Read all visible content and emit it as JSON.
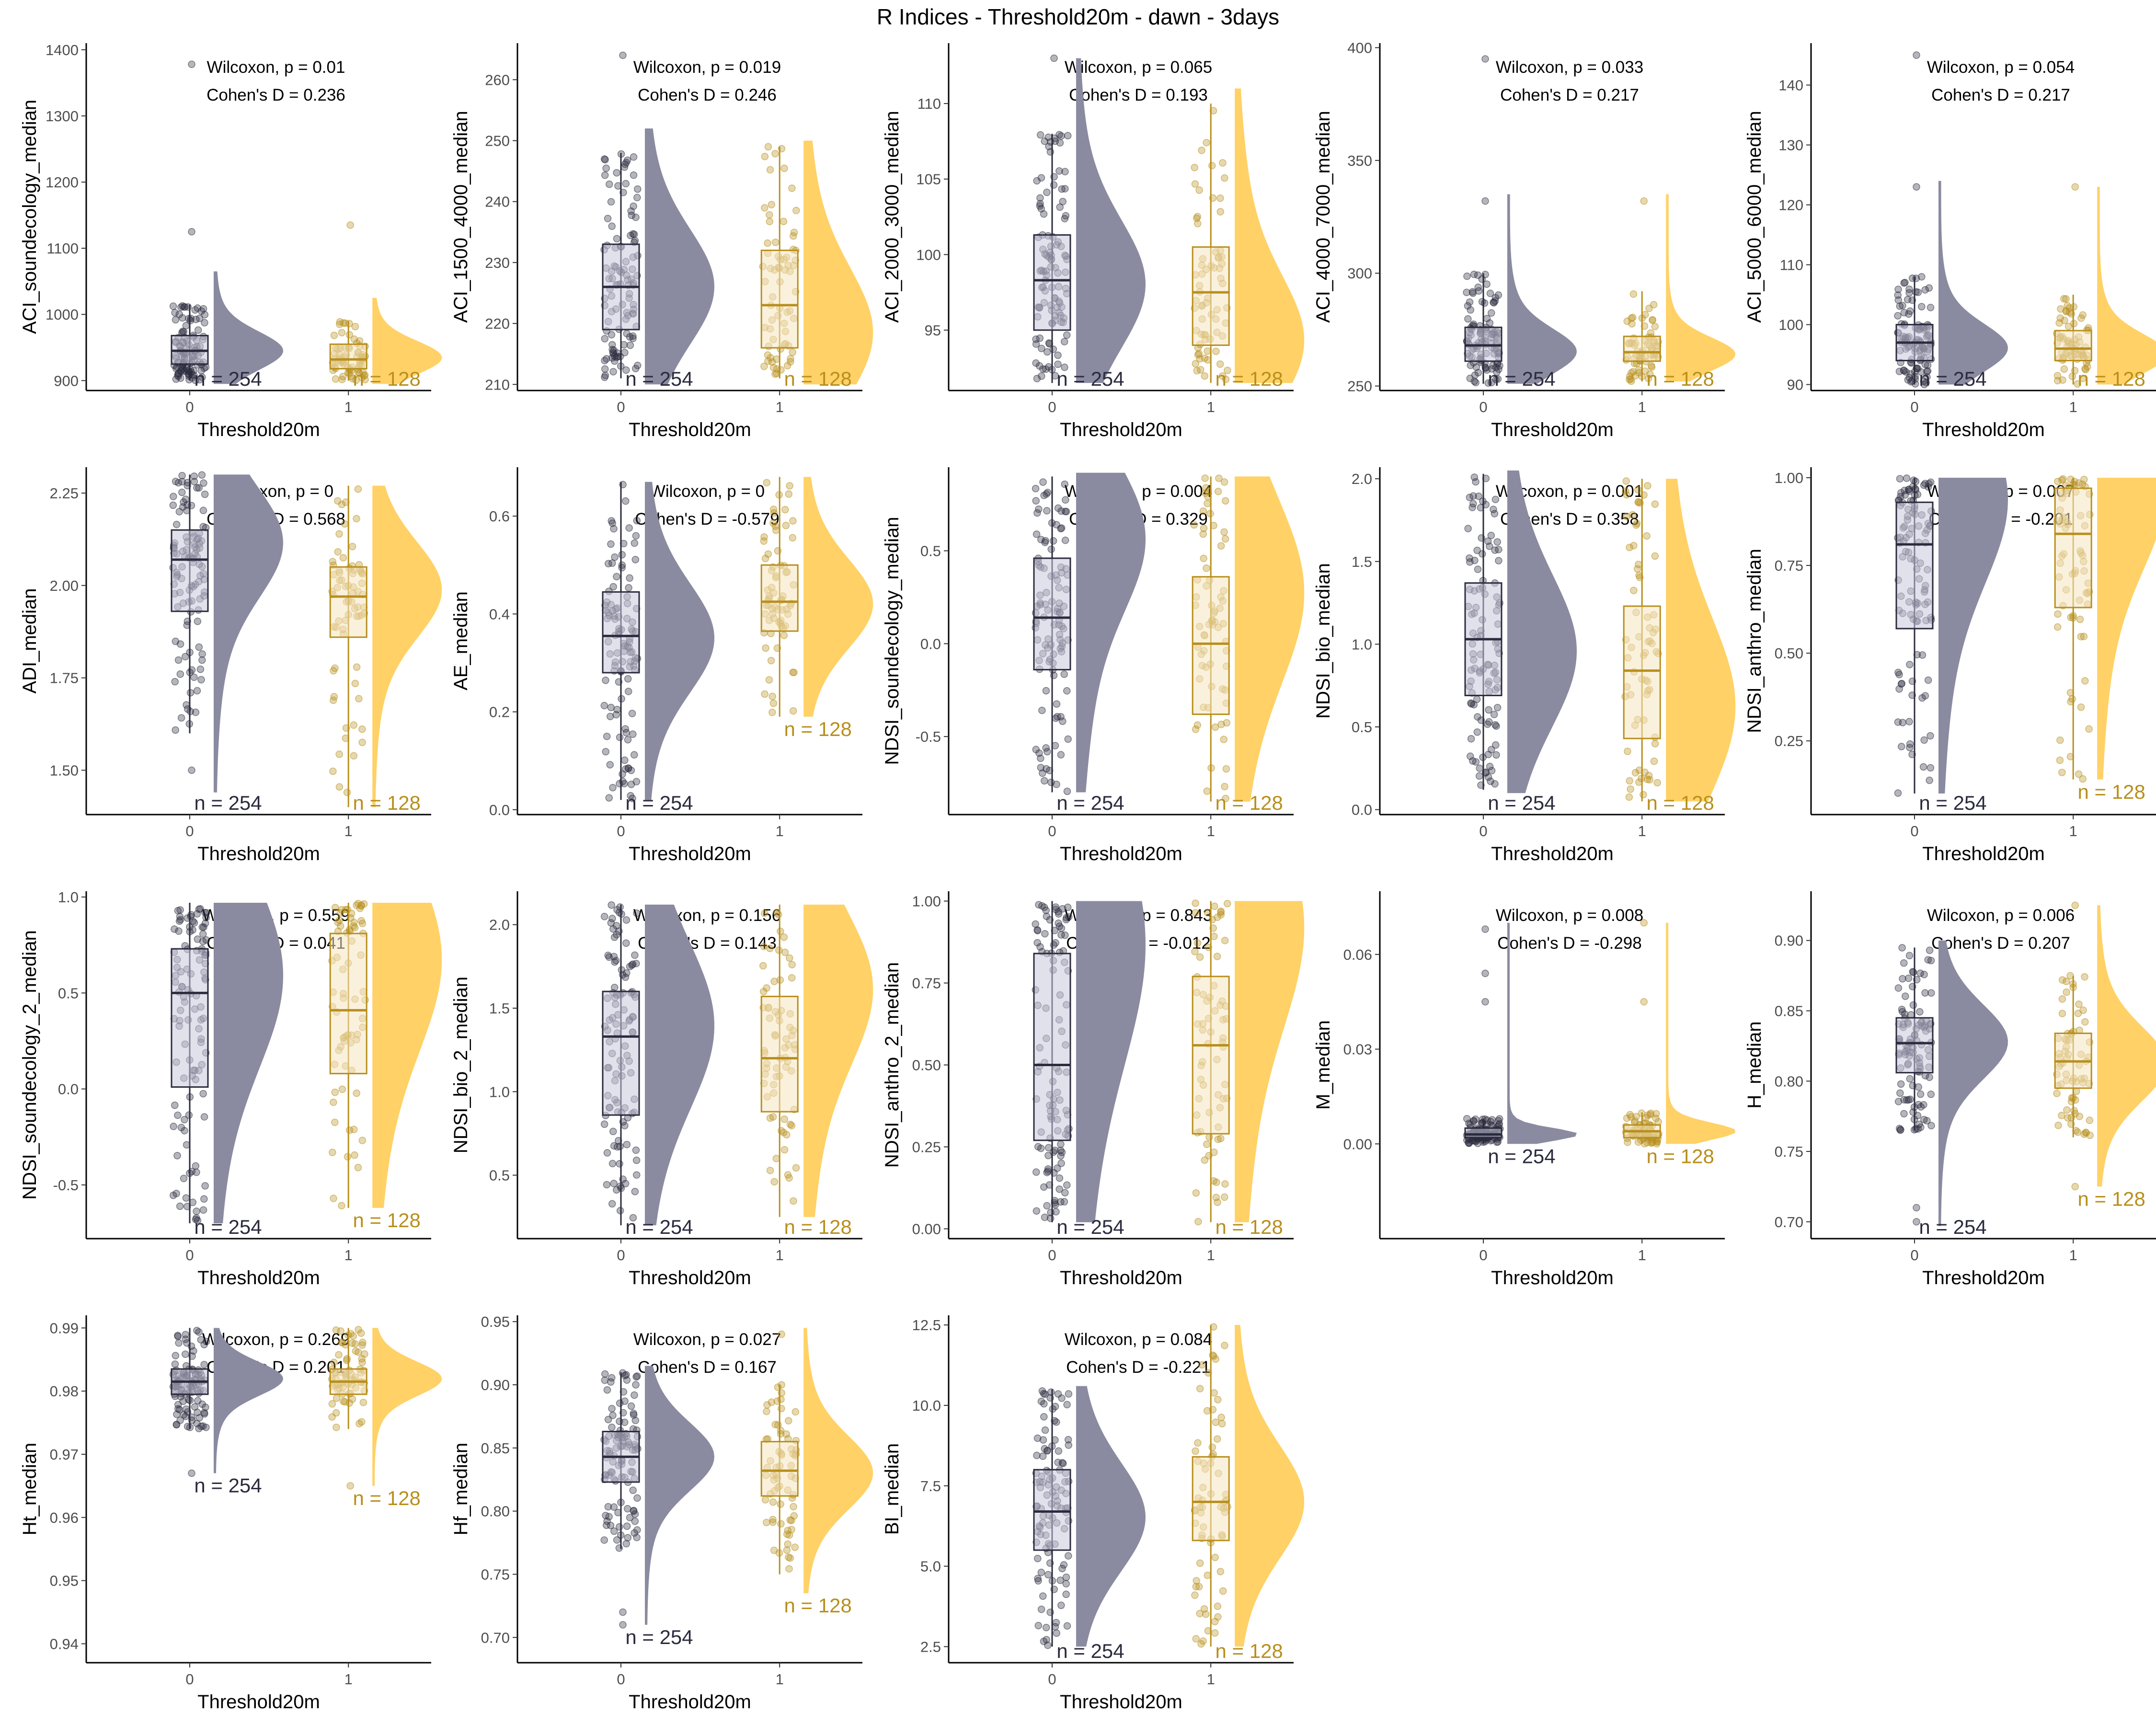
{
  "title": "R Indices - Threshold20m - dawn - 3days",
  "colors": {
    "group0": "#2b2b3e",
    "group0_box_fill": "#c8c8dc",
    "group0_violin": "#8a8ba0",
    "group1": "#b88f1c",
    "group1_box_fill": "#f6e6c1",
    "group1_violin": "#ffd166"
  },
  "chart_data": [
    {
      "type": "box",
      "ylabel": "ACI_soundecology_median",
      "xlabel": "Threshold20m",
      "categories": [
        "0",
        "1"
      ],
      "yticks": [
        900,
        1000,
        1100,
        1200,
        1300,
        1400
      ],
      "ylim": [
        885,
        1410
      ],
      "series": [
        {
          "name": "0",
          "n_label": "n = 254",
          "q1": 925,
          "median": 945,
          "q3": 968,
          "low": 900,
          "high": 1015,
          "dmin": 895,
          "dmax": 1065,
          "outliers": [
            1125,
            1378
          ],
          "mode": 945
        },
        {
          "name": "1",
          "n_label": "n = 128",
          "q1": 918,
          "median": 932,
          "q3": 955,
          "low": 900,
          "high": 990,
          "dmin": 895,
          "dmax": 1025,
          "outliers": [
            1135
          ],
          "mode": 935
        }
      ],
      "annotation": [
        "Wilcoxon, p = 0.01",
        "Cohen's D = 0.236"
      ]
    },
    {
      "type": "box",
      "ylabel": "ACI_1500_4000_median",
      "xlabel": "Threshold20m",
      "categories": [
        "0",
        "1"
      ],
      "yticks": [
        210,
        220,
        230,
        240,
        250,
        260
      ],
      "ylim": [
        209,
        266
      ],
      "series": [
        {
          "name": "0",
          "n_label": "n = 254",
          "q1": 219,
          "median": 226,
          "q3": 233,
          "low": 211,
          "high": 248,
          "dmin": 210,
          "dmax": 252,
          "outliers": [
            264
          ],
          "mode": 226
        },
        {
          "name": "1",
          "n_label": "n = 128",
          "q1": 216,
          "median": 223,
          "q3": 232,
          "low": 211,
          "high": 249,
          "dmin": 210,
          "dmax": 250,
          "outliers": [],
          "mode": 218
        }
      ],
      "annotation": [
        "Wilcoxon, p = 0.019",
        "Cohen's D = 0.246"
      ]
    },
    {
      "type": "box",
      "ylabel": "ACI_2000_3000_median",
      "xlabel": "Threshold20m",
      "categories": [
        "0",
        "1"
      ],
      "yticks": [
        95,
        100,
        105,
        110
      ],
      "ylim": [
        91,
        114
      ],
      "series": [
        {
          "name": "0",
          "n_label": "n = 254",
          "q1": 95,
          "median": 98.3,
          "q3": 101.3,
          "low": 91.5,
          "high": 108,
          "dmin": 91.5,
          "dmax": 113,
          "outliers": [
            113
          ],
          "mode": 98
        },
        {
          "name": "1",
          "n_label": "n = 128",
          "q1": 94,
          "median": 97.5,
          "q3": 100.5,
          "low": 91.5,
          "high": 110,
          "dmin": 91.5,
          "dmax": 111,
          "outliers": [],
          "mode": 94
        }
      ],
      "annotation": [
        "Wilcoxon, p = 0.065",
        "Cohen's D = 0.193"
      ]
    },
    {
      "type": "box",
      "ylabel": "ACI_4000_7000_median",
      "xlabel": "Threshold20m",
      "categories": [
        "0",
        "1"
      ],
      "yticks": [
        250,
        300,
        350,
        400
      ],
      "ylim": [
        248,
        402
      ],
      "series": [
        {
          "name": "0",
          "n_label": "n = 254",
          "q1": 261,
          "median": 268,
          "q3": 276,
          "low": 251,
          "high": 300,
          "dmin": 251,
          "dmax": 335,
          "outliers": [
            332,
            395
          ],
          "mode": 265
        },
        {
          "name": "1",
          "n_label": "n = 128",
          "q1": 261,
          "median": 265,
          "q3": 272,
          "low": 252,
          "high": 292,
          "dmin": 252,
          "dmax": 335,
          "outliers": [
            332
          ],
          "mode": 264
        }
      ],
      "annotation": [
        "Wilcoxon, p = 0.033",
        "Cohen's D = 0.217"
      ]
    },
    {
      "type": "box",
      "ylabel": "ACI_5000_6000_median",
      "xlabel": "Threshold20m",
      "categories": [
        "0",
        "1"
      ],
      "yticks": [
        90,
        100,
        110,
        120,
        130,
        140
      ],
      "ylim": [
        89,
        147
      ],
      "series": [
        {
          "name": "0",
          "n_label": "n = 254",
          "q1": 94,
          "median": 97,
          "q3": 100,
          "low": 90,
          "high": 108,
          "dmin": 90,
          "dmax": 124,
          "outliers": [
            123,
            145
          ],
          "mode": 96
        },
        {
          "name": "1",
          "n_label": "n = 128",
          "q1": 94,
          "median": 96,
          "q3": 99,
          "low": 90,
          "high": 105,
          "dmin": 90,
          "dmax": 123,
          "outliers": [
            123
          ],
          "mode": 95
        }
      ],
      "annotation": [
        "Wilcoxon, p = 0.054",
        "Cohen's D = 0.217"
      ]
    },
    {
      "type": "box",
      "ylabel": "ADI_median",
      "xlabel": "Threshold20m",
      "categories": [
        "0",
        "1"
      ],
      "yticks": [
        1.5,
        1.75,
        2.0,
        2.25
      ],
      "ylim": [
        1.38,
        2.32
      ],
      "series": [
        {
          "name": "0",
          "n_label": "n = 254",
          "q1": 1.93,
          "median": 2.07,
          "q3": 2.15,
          "low": 1.6,
          "high": 2.3,
          "dmin": 1.44,
          "dmax": 2.3,
          "outliers": [
            1.5
          ],
          "mode": 2.12
        },
        {
          "name": "1",
          "n_label": "n = 128",
          "q1": 1.86,
          "median": 1.97,
          "q3": 2.05,
          "low": 1.4,
          "high": 2.27,
          "dmin": 1.4,
          "dmax": 2.27,
          "outliers": [],
          "mode": 1.99
        }
      ],
      "annotation": [
        "Wilcoxon, p = 0",
        "Cohen's D = 0.568"
      ]
    },
    {
      "type": "box",
      "ylabel": "AE_median",
      "xlabel": "Threshold20m",
      "categories": [
        "0",
        "1"
      ],
      "yticks": [
        0.0,
        0.2,
        0.4,
        0.6
      ],
      "ylim": [
        -0.01,
        0.7
      ],
      "series": [
        {
          "name": "0",
          "n_label": "n = 254",
          "q1": 0.28,
          "median": 0.355,
          "q3": 0.445,
          "low": 0.02,
          "high": 0.67,
          "dmin": 0.02,
          "dmax": 0.67,
          "outliers": [],
          "mode": 0.35
        },
        {
          "name": "1",
          "n_label": "n = 128",
          "q1": 0.365,
          "median": 0.425,
          "q3": 0.5,
          "low": 0.19,
          "high": 0.68,
          "dmin": 0.19,
          "dmax": 0.68,
          "outliers": [],
          "mode": 0.42
        }
      ],
      "annotation": [
        "Wilcoxon, p = 0",
        "Cohen's D = -0.579"
      ]
    },
    {
      "type": "box",
      "ylabel": "NDSI_soundecology_median",
      "xlabel": "Threshold20m",
      "categories": [
        "0",
        "1"
      ],
      "yticks": [
        -0.5,
        0.0,
        0.5
      ],
      "ylim": [
        -0.92,
        0.95
      ],
      "series": [
        {
          "name": "0",
          "n_label": "n = 254",
          "q1": -0.14,
          "median": 0.14,
          "q3": 0.46,
          "low": -0.8,
          "high": 0.9,
          "dmin": -0.8,
          "dmax": 0.92,
          "outliers": [],
          "mode": 0.6
        },
        {
          "name": "1",
          "n_label": "n = 128",
          "q1": -0.38,
          "median": 0.0,
          "q3": 0.36,
          "low": -0.85,
          "high": 0.9,
          "dmin": -0.85,
          "dmax": 0.9,
          "outliers": [],
          "mode": 0.3
        }
      ],
      "annotation": [
        "Wilcoxon, p = 0.004",
        "Cohen's D = 0.329"
      ]
    },
    {
      "type": "box",
      "ylabel": "NDSI_bio_median",
      "xlabel": "Threshold20m",
      "categories": [
        "0",
        "1"
      ],
      "yticks": [
        0.0,
        0.5,
        1.0,
        1.5,
        2.0
      ],
      "ylim": [
        -0.03,
        2.07
      ],
      "series": [
        {
          "name": "0",
          "n_label": "n = 254",
          "q1": 0.69,
          "median": 1.03,
          "q3": 1.37,
          "low": 0.12,
          "high": 2.03,
          "dmin": 0.1,
          "dmax": 2.05,
          "outliers": [],
          "mode": 0.95
        },
        {
          "name": "1",
          "n_label": "n = 128",
          "q1": 0.43,
          "median": 0.84,
          "q3": 1.23,
          "low": 0.05,
          "high": 2.0,
          "dmin": 0.05,
          "dmax": 2.0,
          "outliers": [],
          "mode": 0.6
        }
      ],
      "annotation": [
        "Wilcoxon, p = 0.001",
        "Cohen's D = 0.358"
      ]
    },
    {
      "type": "box",
      "ylabel": "NDSI_anthro_median",
      "xlabel": "Threshold20m",
      "categories": [
        "0",
        "1"
      ],
      "yticks": [
        0.25,
        0.5,
        0.75,
        1.0
      ],
      "ylim": [
        0.04,
        1.03
      ],
      "series": [
        {
          "name": "0",
          "n_label": "n = 254",
          "q1": 0.57,
          "median": 0.81,
          "q3": 0.93,
          "low": 0.1,
          "high": 1.0,
          "dmin": 0.1,
          "dmax": 1.0,
          "outliers": [],
          "mode": 0.95
        },
        {
          "name": "1",
          "n_label": "n = 128",
          "q1": 0.63,
          "median": 0.84,
          "q3": 0.97,
          "low": 0.14,
          "high": 1.0,
          "dmin": 0.14,
          "dmax": 1.0,
          "outliers": [],
          "mode": 0.98
        }
      ],
      "annotation": [
        "Wilcoxon, p = 0.007",
        "Cohen's D = -0.201"
      ]
    },
    {
      "type": "box",
      "ylabel": "NDSI_soundecology_2_median",
      "xlabel": "Threshold20m",
      "categories": [
        "0",
        "1"
      ],
      "yticks": [
        -0.5,
        0.0,
        0.5,
        1.0
      ],
      "ylim": [
        -0.78,
        1.03
      ],
      "series": [
        {
          "name": "0",
          "n_label": "n = 254",
          "q1": 0.01,
          "median": 0.5,
          "q3": 0.73,
          "low": -0.7,
          "high": 0.97,
          "dmin": -0.7,
          "dmax": 0.97,
          "outliers": [],
          "mode": 0.6
        },
        {
          "name": "1",
          "n_label": "n = 128",
          "q1": 0.08,
          "median": 0.41,
          "q3": 0.81,
          "low": -0.62,
          "high": 0.97,
          "dmin": -0.62,
          "dmax": 0.97,
          "outliers": [],
          "mode": 0.7
        }
      ],
      "annotation": [
        "Wilcoxon, p = 0.559",
        "Cohen's D = 0.041"
      ]
    },
    {
      "type": "box",
      "ylabel": "NDSI_bio_2_median",
      "xlabel": "Threshold20m",
      "categories": [
        "0",
        "1"
      ],
      "yticks": [
        0.5,
        1.0,
        1.5,
        2.0
      ],
      "ylim": [
        0.12,
        2.2
      ],
      "series": [
        {
          "name": "0",
          "n_label": "n = 254",
          "q1": 0.86,
          "median": 1.33,
          "q3": 1.6,
          "low": 0.2,
          "high": 2.12,
          "dmin": 0.2,
          "dmax": 2.12,
          "outliers": [],
          "mode": 1.4
        },
        {
          "name": "1",
          "n_label": "n = 128",
          "q1": 0.88,
          "median": 1.2,
          "q3": 1.57,
          "low": 0.25,
          "high": 2.12,
          "dmin": 0.25,
          "dmax": 2.12,
          "outliers": [],
          "mode": 1.65
        }
      ],
      "annotation": [
        "Wilcoxon, p = 0.156",
        "Cohen's D = 0.143"
      ]
    },
    {
      "type": "box",
      "ylabel": "NDSI_anthro_2_median",
      "xlabel": "Threshold20m",
      "categories": [
        "0",
        "1"
      ],
      "yticks": [
        0.0,
        0.25,
        0.5,
        0.75,
        1.0
      ],
      "ylim": [
        -0.03,
        1.03
      ],
      "series": [
        {
          "name": "0",
          "n_label": "n = 254",
          "q1": 0.27,
          "median": 0.5,
          "q3": 0.84,
          "low": 0.02,
          "high": 1.0,
          "dmin": 0.02,
          "dmax": 1.0,
          "outliers": [],
          "mode": 0.9
        },
        {
          "name": "1",
          "n_label": "n = 128",
          "q1": 0.29,
          "median": 0.56,
          "q3": 0.77,
          "low": 0.02,
          "high": 1.0,
          "dmin": 0.02,
          "dmax": 1.0,
          "outliers": [],
          "mode": 0.95
        }
      ],
      "annotation": [
        "Wilcoxon, p = 0.843",
        "Cohen's D = -0.012"
      ]
    },
    {
      "type": "box",
      "ylabel": "M_median",
      "xlabel": "Threshold20m",
      "categories": [
        "0",
        "1"
      ],
      "yticks": [
        0.0,
        0.03,
        0.06
      ],
      "ylim": [
        -0.03,
        0.08
      ],
      "series": [
        {
          "name": "0",
          "n_label": "n = 254",
          "q1": 0.002,
          "median": 0.003,
          "q3": 0.005,
          "low": 0.0,
          "high": 0.008,
          "dmin": 0.0,
          "dmax": 0.07,
          "outliers": [
            0.045,
            0.054,
            0.068
          ],
          "mode": 0.003
        },
        {
          "name": "1",
          "n_label": "n = 128",
          "q1": 0.002,
          "median": 0.004,
          "q3": 0.006,
          "low": 0.0,
          "high": 0.01,
          "dmin": 0.0,
          "dmax": 0.07,
          "outliers": [
            0.045,
            0.07
          ],
          "mode": 0.004
        }
      ],
      "annotation": [
        "Wilcoxon, p = 0.008",
        "Cohen's D = -0.298"
      ]
    },
    {
      "type": "box",
      "ylabel": "H_median",
      "xlabel": "Threshold20m",
      "categories": [
        "0",
        "1"
      ],
      "yticks": [
        0.7,
        0.75,
        0.8,
        0.85,
        0.9
      ],
      "ylim": [
        0.688,
        0.935
      ],
      "series": [
        {
          "name": "0",
          "n_label": "n = 254",
          "q1": 0.806,
          "median": 0.827,
          "q3": 0.845,
          "low": 0.765,
          "high": 0.895,
          "dmin": 0.697,
          "dmax": 0.9,
          "outliers": [
            0.7,
            0.71
          ],
          "mode": 0.828
        },
        {
          "name": "1",
          "n_label": "n = 128",
          "q1": 0.795,
          "median": 0.814,
          "q3": 0.834,
          "low": 0.76,
          "high": 0.875,
          "dmin": 0.725,
          "dmax": 0.925,
          "outliers": [
            0.725,
            0.925
          ],
          "mode": 0.812
        }
      ],
      "annotation": [
        "Wilcoxon, p = 0.006",
        "Cohen's D = 0.207"
      ]
    },
    {
      "type": "box",
      "ylabel": "Ht_median",
      "xlabel": "Threshold20m",
      "categories": [
        "0",
        "1"
      ],
      "yticks": [
        0.94,
        0.95,
        0.96,
        0.97,
        0.98,
        0.99
      ],
      "ylim": [
        0.937,
        0.992
      ],
      "series": [
        {
          "name": "0",
          "n_label": "n = 254",
          "q1": 0.9795,
          "median": 0.9815,
          "q3": 0.9835,
          "low": 0.974,
          "high": 0.99,
          "dmin": 0.967,
          "dmax": 0.99,
          "outliers": [
            0.967
          ],
          "mode": 0.982
        },
        {
          "name": "1",
          "n_label": "n = 128",
          "q1": 0.9795,
          "median": 0.9815,
          "q3": 0.9835,
          "low": 0.974,
          "high": 0.99,
          "dmin": 0.965,
          "dmax": 0.99,
          "outliers": [
            0.965
          ],
          "mode": 0.982
        }
      ],
      "annotation": [
        "Wilcoxon, p = 0.269",
        "Cohen's D = 0.201"
      ]
    },
    {
      "type": "box",
      "ylabel": "Hf_median",
      "xlabel": "Threshold20m",
      "categories": [
        "0",
        "1"
      ],
      "yticks": [
        0.7,
        0.75,
        0.8,
        0.85,
        0.9,
        0.95
      ],
      "ylim": [
        0.68,
        0.955
      ],
      "series": [
        {
          "name": "0",
          "n_label": "n = 254",
          "q1": 0.823,
          "median": 0.843,
          "q3": 0.863,
          "low": 0.77,
          "high": 0.91,
          "dmin": 0.71,
          "dmax": 0.915,
          "outliers": [
            0.71,
            0.72
          ],
          "mode": 0.843
        },
        {
          "name": "1",
          "n_label": "n = 128",
          "q1": 0.812,
          "median": 0.832,
          "q3": 0.855,
          "low": 0.75,
          "high": 0.9,
          "dmin": 0.735,
          "dmax": 0.945,
          "outliers": [
            0.94
          ],
          "mode": 0.83
        }
      ],
      "annotation": [
        "Wilcoxon, p = 0.027",
        "Cohen's D = 0.167"
      ]
    },
    {
      "type": "box",
      "ylabel": "BI_median",
      "xlabel": "Threshold20m",
      "categories": [
        "0",
        "1"
      ],
      "yticks": [
        2.5,
        5.0,
        7.5,
        10.0,
        12.5
      ],
      "ylim": [
        2.0,
        12.8
      ],
      "series": [
        {
          "name": "0",
          "n_label": "n = 254",
          "q1": 5.5,
          "median": 6.7,
          "q3": 8.0,
          "low": 2.5,
          "high": 10.5,
          "dmin": 2.5,
          "dmax": 10.6,
          "outliers": [],
          "mode": 6.5
        },
        {
          "name": "1",
          "n_label": "n = 128",
          "q1": 5.8,
          "median": 7.0,
          "q3": 8.4,
          "low": 2.5,
          "high": 12.5,
          "dmin": 2.5,
          "dmax": 12.5,
          "outliers": [],
          "mode": 7.0
        }
      ],
      "annotation": [
        "Wilcoxon, p = 0.084",
        "Cohen's D = -0.221"
      ]
    }
  ]
}
